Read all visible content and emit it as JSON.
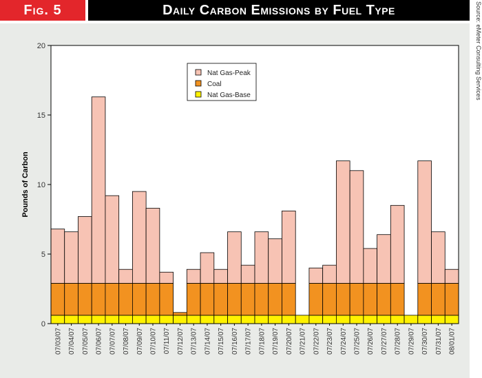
{
  "header": {
    "fig_label": "Fig. 5",
    "title": "Daily Carbon Emissions by Fuel Type"
  },
  "source": "Source: eMeter Consulting Services",
  "colors": {
    "peak": "#f7c3b4",
    "coal": "#f29220",
    "base": "#fff200",
    "panel": "#e9ebe8",
    "fig_red": "#e3262b"
  },
  "chart_data": {
    "type": "bar",
    "stacked": true,
    "title": "Daily Carbon Emissions by Fuel Type",
    "xlabel": "",
    "ylabel": "Pounds of Carbon",
    "ylim": [
      0,
      20
    ],
    "yticks": [
      0,
      5,
      10,
      15,
      20
    ],
    "legend_position": "top-center",
    "categories": [
      "07/03/07",
      "07/04/07",
      "07/05/07",
      "07/06/07",
      "07/07/07",
      "07/08/07",
      "07/09/07",
      "07/10/07",
      "07/11/07",
      "07/12/07",
      "07/13/07",
      "07/14/07",
      "07/15/07",
      "07/16/07",
      "07/17/07",
      "07/18/07",
      "07/19/07",
      "07/20/07",
      "07/21/07",
      "07/22/07",
      "07/23/07",
      "07/24/07",
      "07/25/07",
      "07/26/07",
      "07/27/07",
      "07/28/07",
      "07/29/07",
      "07/30/07",
      "07/31/07",
      "08/01/07"
    ],
    "series": [
      {
        "name": "Nat Gas-Base",
        "color_key": "base",
        "values": [
          0.6,
          0.6,
          0.6,
          0.6,
          0.6,
          0.6,
          0.6,
          0.6,
          0.6,
          0.6,
          0.6,
          0.6,
          0.6,
          0.6,
          0.6,
          0.6,
          0.6,
          0.6,
          0.6,
          0.6,
          0.6,
          0.6,
          0.6,
          0.6,
          0.6,
          0.6,
          0.6,
          0.6,
          0.6,
          0.6
        ]
      },
      {
        "name": "Coal",
        "color_key": "coal",
        "values": [
          2.3,
          2.3,
          2.3,
          2.3,
          2.3,
          2.3,
          2.3,
          2.3,
          2.3,
          0.2,
          2.3,
          2.3,
          2.3,
          2.3,
          2.3,
          2.3,
          2.3,
          2.3,
          0,
          2.3,
          2.3,
          2.3,
          2.3,
          2.3,
          2.3,
          2.3,
          0,
          2.3,
          2.3,
          2.3
        ]
      },
      {
        "name": "Nat Gas-Peak",
        "color_key": "peak",
        "values": [
          3.9,
          3.7,
          4.8,
          13.4,
          6.3,
          1.0,
          6.6,
          5.4,
          0.8,
          0,
          1.0,
          2.2,
          1.0,
          3.7,
          1.3,
          3.7,
          3.2,
          5.2,
          0,
          1.1,
          1.3,
          8.8,
          8.1,
          2.5,
          3.5,
          5.6,
          0,
          8.8,
          3.7,
          1.0
        ]
      }
    ],
    "legend_order": [
      "Nat Gas-Peak",
      "Coal",
      "Nat Gas-Base"
    ]
  }
}
